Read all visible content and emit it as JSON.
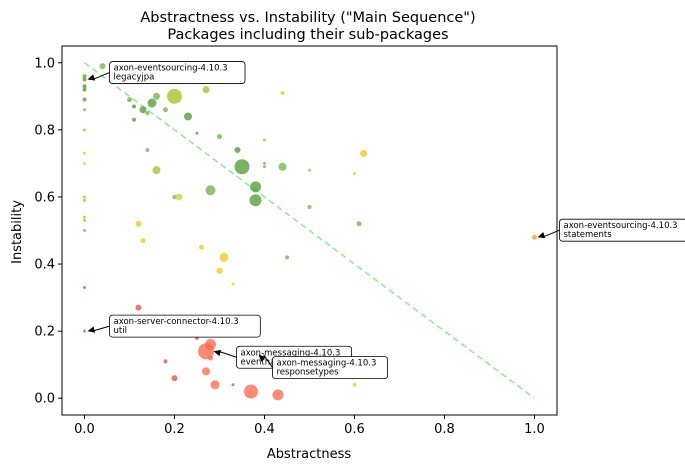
{
  "chart_data": {
    "type": "scatter",
    "title": "Abstractness vs. Instability (\"Main Sequence\")",
    "subtitle": "Packages including their sub-packages",
    "xlabel": "Abstractness",
    "ylabel": "Instability",
    "xlim": [
      -0.05,
      1.05
    ],
    "ylim": [
      -0.05,
      1.05
    ],
    "xticks": [
      "0.0",
      "0.2",
      "0.4",
      "0.6",
      "0.8",
      "1.0"
    ],
    "yticks": [
      "0.0",
      "0.2",
      "0.4",
      "0.6",
      "0.8",
      "1.0"
    ],
    "grid": false,
    "main_sequence_color": "#90ee90",
    "points": [
      {
        "x": 0.0,
        "y": 0.96,
        "size": 2,
        "color": "#4c9a2a"
      },
      {
        "x": 0.0,
        "y": 0.95,
        "size": 2,
        "color": "#4c9a2a"
      },
      {
        "x": 0.0,
        "y": 0.93,
        "size": 2,
        "color": "#4c9a2a"
      },
      {
        "x": 0.0,
        "y": 0.92,
        "size": 2,
        "color": "#4c9a2a"
      },
      {
        "x": 0.0,
        "y": 0.89,
        "size": 2,
        "color": "#4c9a2a"
      },
      {
        "x": 0.0,
        "y": 0.86,
        "size": 1.5,
        "color": "#6ab04c"
      },
      {
        "x": 0.0,
        "y": 0.8,
        "size": 1.5,
        "color": "#a0c020"
      },
      {
        "x": 0.0,
        "y": 0.73,
        "size": 1.5,
        "color": "#f1c40f"
      },
      {
        "x": 0.0,
        "y": 0.7,
        "size": 1.5,
        "color": "#f1c40f"
      },
      {
        "x": 0.0,
        "y": 0.6,
        "size": 1.5,
        "color": "#f39c12"
      },
      {
        "x": 0.0,
        "y": 0.59,
        "size": 1.5,
        "color": "#f39c12"
      },
      {
        "x": 0.0,
        "y": 0.54,
        "size": 1.5,
        "color": "#f39c12"
      },
      {
        "x": 0.0,
        "y": 0.53,
        "size": 1.5,
        "color": "#f39c12"
      },
      {
        "x": 0.0,
        "y": 0.5,
        "size": 1.5,
        "color": "#e67e22"
      },
      {
        "x": 0.0,
        "y": 0.33,
        "size": 1.5,
        "color": "#e74c3c"
      },
      {
        "x": 0.0,
        "y": 0.2,
        "size": 1.5,
        "color": "#e74c3c"
      },
      {
        "x": 0.04,
        "y": 0.99,
        "size": 3,
        "color": "#6ab04c"
      },
      {
        "x": 0.07,
        "y": 0.96,
        "size": 2,
        "color": "#a0c020"
      },
      {
        "x": 0.1,
        "y": 0.89,
        "size": 2.5,
        "color": "#6ab04c"
      },
      {
        "x": 0.11,
        "y": 0.87,
        "size": 2,
        "color": "#4c9a2a"
      },
      {
        "x": 0.11,
        "y": 0.83,
        "size": 2,
        "color": "#4c9a2a"
      },
      {
        "x": 0.13,
        "y": 0.86,
        "size": 3.5,
        "color": "#4c9a2a"
      },
      {
        "x": 0.14,
        "y": 0.85,
        "size": 2,
        "color": "#6ab04c"
      },
      {
        "x": 0.15,
        "y": 0.88,
        "size": 4.5,
        "color": "#4c9a2a"
      },
      {
        "x": 0.16,
        "y": 0.9,
        "size": 3.5,
        "color": "#6ab04c"
      },
      {
        "x": 0.18,
        "y": 0.86,
        "size": 2.5,
        "color": "#6ab04c"
      },
      {
        "x": 0.2,
        "y": 0.9,
        "size": 7.5,
        "color": "#a0c020"
      },
      {
        "x": 0.14,
        "y": 0.74,
        "size": 2,
        "color": "#6ab04c"
      },
      {
        "x": 0.16,
        "y": 0.68,
        "size": 4,
        "color": "#a0c020"
      },
      {
        "x": 0.16,
        "y": 0.96,
        "size": 2,
        "color": "#c8d040"
      },
      {
        "x": 0.2,
        "y": 0.96,
        "size": 2,
        "color": "#c8d040"
      },
      {
        "x": 0.23,
        "y": 0.84,
        "size": 4,
        "color": "#4c9a2a"
      },
      {
        "x": 0.25,
        "y": 0.79,
        "size": 1.5,
        "color": "#4c9a2a"
      },
      {
        "x": 0.25,
        "y": 0.96,
        "size": 1.5,
        "color": "#c8d040"
      },
      {
        "x": 0.27,
        "y": 0.92,
        "size": 3.5,
        "color": "#a0c020"
      },
      {
        "x": 0.3,
        "y": 0.78,
        "size": 2.5,
        "color": "#6ab04c"
      },
      {
        "x": 0.34,
        "y": 0.74,
        "size": 3,
        "color": "#4c9a2a"
      },
      {
        "x": 0.35,
        "y": 0.69,
        "size": 7.5,
        "color": "#4c9a2a"
      },
      {
        "x": 0.38,
        "y": 0.63,
        "size": 5.5,
        "color": "#4c9a2a"
      },
      {
        "x": 0.38,
        "y": 0.59,
        "size": 6,
        "color": "#4c9a2a"
      },
      {
        "x": 0.4,
        "y": 0.7,
        "size": 1.5,
        "color": "#6ab04c"
      },
      {
        "x": 0.4,
        "y": 0.69,
        "size": 1.5,
        "color": "#6ab04c"
      },
      {
        "x": 0.4,
        "y": 0.77,
        "size": 1.5,
        "color": "#a0c020"
      },
      {
        "x": 0.44,
        "y": 0.69,
        "size": 4,
        "color": "#6ab04c"
      },
      {
        "x": 0.44,
        "y": 0.91,
        "size": 2,
        "color": "#f1c40f"
      },
      {
        "x": 0.28,
        "y": 0.62,
        "size": 5,
        "color": "#6ab04c"
      },
      {
        "x": 0.2,
        "y": 0.6,
        "size": 2,
        "color": "#6ab04c"
      },
      {
        "x": 0.21,
        "y": 0.6,
        "size": 3.5,
        "color": "#c8d040"
      },
      {
        "x": 0.5,
        "y": 0.68,
        "size": 1.5,
        "color": "#a0c020"
      },
      {
        "x": 0.5,
        "y": 0.57,
        "size": 2,
        "color": "#6ab04c"
      },
      {
        "x": 0.45,
        "y": 0.42,
        "size": 2,
        "color": "#6ab04c"
      },
      {
        "x": 0.6,
        "y": 0.67,
        "size": 1.5,
        "color": "#f1c40f"
      },
      {
        "x": 0.61,
        "y": 0.52,
        "size": 2.5,
        "color": "#6ab04c"
      },
      {
        "x": 0.62,
        "y": 0.73,
        "size": 3.5,
        "color": "#f1c40f"
      },
      {
        "x": 0.12,
        "y": 0.52,
        "size": 3,
        "color": "#f1c40f"
      },
      {
        "x": 0.13,
        "y": 0.47,
        "size": 2.5,
        "color": "#f1c40f"
      },
      {
        "x": 0.26,
        "y": 0.45,
        "size": 2.5,
        "color": "#f1c40f"
      },
      {
        "x": 0.31,
        "y": 0.42,
        "size": 4.5,
        "color": "#f1c40f"
      },
      {
        "x": 0.3,
        "y": 0.38,
        "size": 3,
        "color": "#f1c40f"
      },
      {
        "x": 0.33,
        "y": 0.34,
        "size": 1.5,
        "color": "#f1c40f"
      },
      {
        "x": 1.0,
        "y": 0.48,
        "size": 2.5,
        "color": "#f39c12"
      },
      {
        "x": 0.12,
        "y": 0.27,
        "size": 3,
        "color": "#e74c3c"
      },
      {
        "x": 0.25,
        "y": 0.18,
        "size": 2,
        "color": "#e74c3c"
      },
      {
        "x": 0.27,
        "y": 0.14,
        "size": 8,
        "color": "#ff6347"
      },
      {
        "x": 0.28,
        "y": 0.16,
        "size": 5.5,
        "color": "#ff6347"
      },
      {
        "x": 0.28,
        "y": 0.12,
        "size": 2.5,
        "color": "#ff6347"
      },
      {
        "x": 0.27,
        "y": 0.08,
        "size": 4,
        "color": "#ff6347"
      },
      {
        "x": 0.18,
        "y": 0.11,
        "size": 2,
        "color": "#e74c3c"
      },
      {
        "x": 0.2,
        "y": 0.06,
        "size": 3,
        "color": "#e74c3c"
      },
      {
        "x": 0.29,
        "y": 0.04,
        "size": 4.5,
        "color": "#ff6347"
      },
      {
        "x": 0.33,
        "y": 0.04,
        "size": 1.5,
        "color": "#e74c3c"
      },
      {
        "x": 0.37,
        "y": 0.02,
        "size": 7,
        "color": "#ff6347"
      },
      {
        "x": 0.43,
        "y": 0.01,
        "size": 5.5,
        "color": "#ff6347"
      },
      {
        "x": 0.6,
        "y": 0.04,
        "size": 2,
        "color": "#f1c40f"
      },
      {
        "x": 0.67,
        "y": 0.09,
        "size": 1.5,
        "color": "#f1c40f"
      }
    ],
    "annotations": [
      {
        "id": "ann1",
        "lines": [
          "axon-eventsourcing-4.10.3",
          "legacyjpa"
        ],
        "x": 0.0,
        "y": 0.95
      },
      {
        "id": "ann2",
        "lines": [
          "axon-eventsourcing-4.10.3",
          "statements"
        ],
        "x": 1.0,
        "y": 0.48
      },
      {
        "id": "ann3",
        "lines": [
          "axon-server-connector-4.10.3",
          "util"
        ],
        "x": 0.0,
        "y": 0.2
      },
      {
        "id": "ann4",
        "lines": [
          "axon-messaging-4.10.3",
          "eventhandling"
        ],
        "x": 0.28,
        "y": 0.14
      },
      {
        "id": "ann5",
        "lines": [
          "axon-messaging-4.10.3",
          "responsetypes"
        ],
        "x": 0.38,
        "y": 0.13
      }
    ]
  }
}
